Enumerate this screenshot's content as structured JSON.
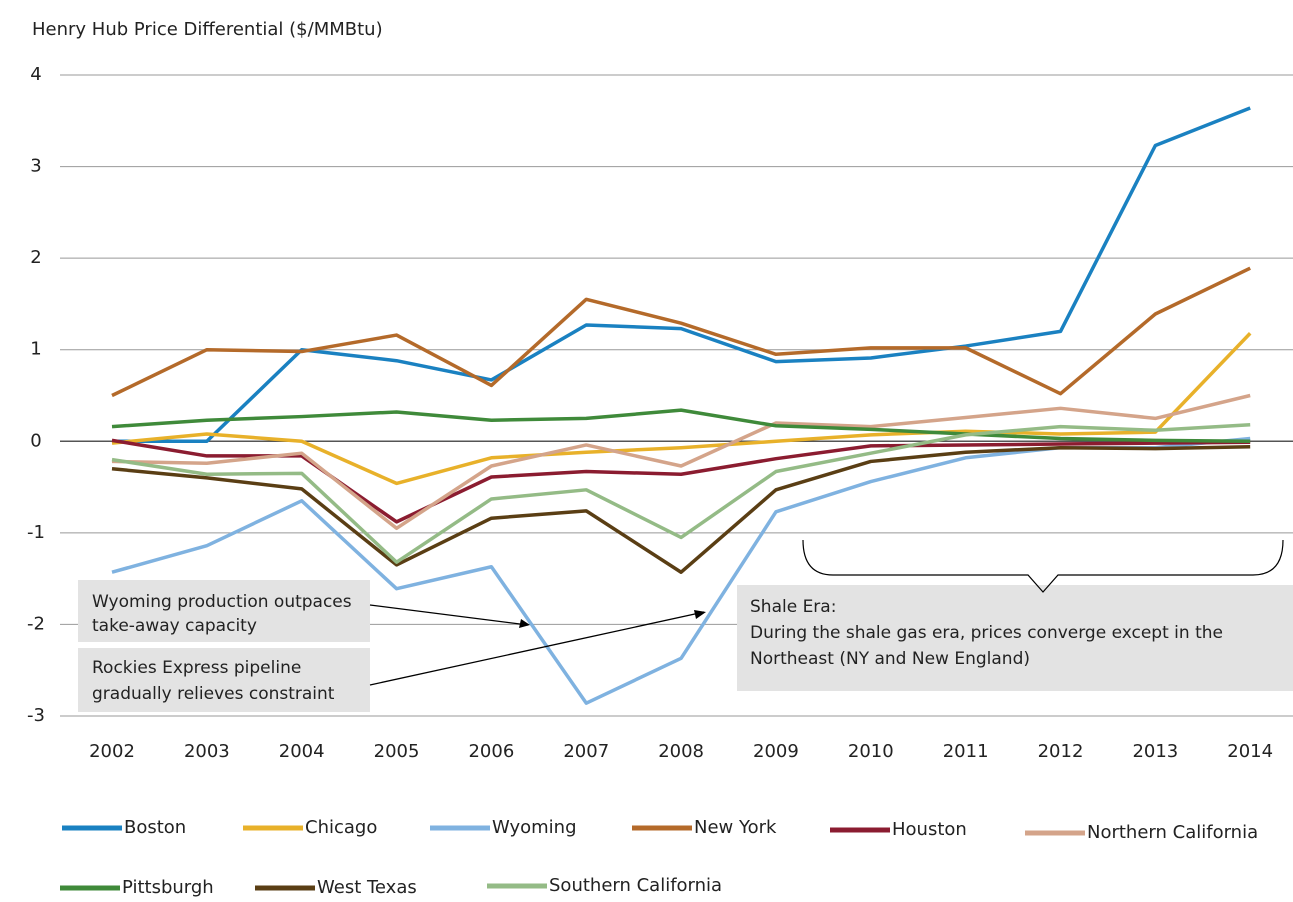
{
  "chart_data": {
    "type": "line",
    "y_label": "Henry Hub Price Differential ($/MMBtu)",
    "categories": [
      "2002",
      "2003",
      "2004",
      "2005",
      "2006",
      "2007",
      "2008",
      "2009",
      "2010",
      "2011",
      "2012",
      "2013",
      "2014"
    ],
    "ylim": [
      -3,
      4
    ],
    "yticks": [
      -3,
      -2,
      -1,
      0,
      1,
      2,
      3,
      4
    ],
    "grid": true,
    "series": [
      {
        "name": "Boston",
        "color": "#1a81c1",
        "values": [
          0.0,
          0.0,
          1.0,
          0.88,
          0.67,
          1.27,
          1.23,
          0.87,
          0.91,
          1.04,
          1.2,
          3.23,
          3.64
        ]
      },
      {
        "name": "Chicago",
        "color": "#e8b12a",
        "values": [
          -0.02,
          0.08,
          0.0,
          -0.46,
          -0.18,
          -0.12,
          -0.07,
          0.0,
          0.07,
          0.11,
          0.08,
          0.1,
          1.18
        ]
      },
      {
        "name": "Wyoming",
        "color": "#7fb2e0",
        "values": [
          -1.43,
          -1.14,
          -0.65,
          -1.61,
          -1.37,
          -2.86,
          -2.37,
          -0.77,
          -0.44,
          -0.18,
          -0.07,
          -0.07,
          0.03
        ]
      },
      {
        "name": "New York",
        "color": "#b46a2a",
        "values": [
          0.5,
          1.0,
          0.98,
          1.16,
          0.61,
          1.55,
          1.29,
          0.95,
          1.02,
          1.02,
          0.52,
          1.39,
          1.89
        ]
      },
      {
        "name": "Houston",
        "color": "#8b1c30",
        "values": [
          0.01,
          -0.16,
          -0.16,
          -0.88,
          -0.39,
          -0.33,
          -0.36,
          -0.19,
          -0.05,
          -0.04,
          -0.03,
          -0.02,
          -0.01
        ]
      },
      {
        "name": "Northern California",
        "color": "#d4a48a",
        "values": [
          -0.22,
          -0.24,
          -0.13,
          -0.95,
          -0.27,
          -0.04,
          -0.27,
          0.2,
          0.16,
          0.26,
          0.36,
          0.25,
          0.5
        ]
      },
      {
        "name": "Pittsburgh",
        "color": "#3f8a3a",
        "values": [
          0.16,
          0.23,
          0.27,
          0.32,
          0.23,
          0.25,
          0.34,
          0.17,
          0.13,
          0.08,
          0.03,
          0.01,
          0.0
        ]
      },
      {
        "name": "West Texas",
        "color": "#5a3e14",
        "values": [
          -0.3,
          -0.4,
          -0.52,
          -1.35,
          -0.84,
          -0.76,
          -1.43,
          -0.53,
          -0.22,
          -0.12,
          -0.07,
          -0.08,
          -0.06
        ]
      },
      {
        "name": "Southern California",
        "color": "#94bb86",
        "values": [
          -0.2,
          -0.36,
          -0.35,
          -1.32,
          -0.63,
          -0.53,
          -1.05,
          -0.33,
          -0.13,
          0.07,
          0.16,
          0.12,
          0.18
        ]
      }
    ],
    "annotations": [
      {
        "lines": [
          "Wyoming production outpaces",
          "take-away capacity"
        ]
      },
      {
        "lines": [
          "Rockies Express pipeline",
          "gradually relieves constraint"
        ]
      },
      {
        "lines": [
          "Shale Era:",
          "During the shale gas era, prices converge except in the",
          "Northeast (NY and New England)"
        ]
      }
    ]
  }
}
